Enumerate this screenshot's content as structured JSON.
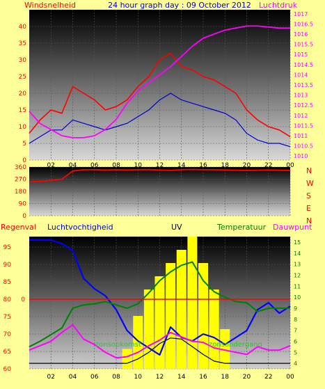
{
  "header": {
    "wind_label": "Windsnelheid",
    "title": "24 hour graph day : 09 October 2012",
    "pressure_label": "Luchtdruk"
  },
  "lower_header": {
    "rain_label": "Regenval",
    "humidity_label": "Luchtvochtigheid",
    "uv_label": "UV",
    "temp_label": "Temperatuur",
    "dew_label": "Dauwpunt"
  },
  "direction_letters": [
    "N",
    "W",
    "S",
    "E",
    "N"
  ],
  "annotations": {
    "sunrise": "zonsopkomst",
    "sunset": "zonsondergang"
  },
  "colors": {
    "page_bg": "#ffff99",
    "wind": "#ff0000",
    "gust_avg": "#0000cc",
    "pressure": "#ff00ff",
    "direction": "#ff0000",
    "humidity": "#0000ff",
    "temperature": "#008000",
    "dewpoint": "#ff00ff",
    "uv": "#ffff00",
    "solar": "#000000",
    "rain": "#ff0000",
    "labels_left": "#ff0000",
    "labels_right_temp": "#008000",
    "title": "#0000cc"
  },
  "chart_data": [
    {
      "type": "line",
      "title": "24 hour graph day : 09 October 2012",
      "x_ticks": [
        "02",
        "04",
        "06",
        "08",
        "10",
        "12",
        "14",
        "16",
        "18",
        "20",
        "22",
        "00"
      ],
      "x": [
        0,
        1,
        2,
        3,
        4,
        5,
        6,
        7,
        8,
        9,
        10,
        11,
        12,
        13,
        14,
        15,
        16,
        17,
        18,
        19,
        20,
        21,
        22,
        23,
        24
      ],
      "ylabel_left": "Windsnelheid",
      "ylim_left": [
        0,
        45
      ],
      "yticks_left": [
        0,
        5,
        10,
        15,
        20,
        25,
        30,
        35,
        40
      ],
      "ylabel_right": "Luchtdruk",
      "ylim_right": [
        1009.8,
        1017.2
      ],
      "yticks_right": [
        1010,
        1010.5,
        1011,
        1011.5,
        1012,
        1012.5,
        1013,
        1013.5,
        1014,
        1014.5,
        1015,
        1015.5,
        1016,
        1016.5,
        1017
      ],
      "series": [
        {
          "name": "Windsnelheid",
          "axis": "left",
          "values": [
            8,
            12,
            15,
            14,
            22,
            20,
            18,
            15,
            16,
            18,
            22,
            25,
            30,
            32,
            28,
            27,
            25,
            24,
            22,
            20,
            15,
            12,
            10,
            9,
            7
          ]
        },
        {
          "name": "",
          "axis": "left",
          "values": [
            5,
            7,
            9,
            9,
            12,
            11,
            10,
            9,
            10,
            11,
            13,
            15,
            18,
            20,
            18,
            17,
            16,
            15,
            14,
            12,
            8,
            6,
            5,
            5,
            4
          ]
        },
        {
          "name": "Luchtdruk",
          "axis": "right",
          "values": [
            1012.2,
            1011.6,
            1011.3,
            1011.0,
            1010.9,
            1010.9,
            1011.0,
            1011.3,
            1011.8,
            1012.6,
            1013.2,
            1013.6,
            1014.0,
            1014.4,
            1014.9,
            1015.4,
            1015.8,
            1016.0,
            1016.2,
            1016.3,
            1016.4,
            1016.4,
            1016.35,
            1016.3,
            1016.3
          ]
        }
      ]
    },
    {
      "type": "line",
      "x_ticks": [
        "02",
        "04",
        "06",
        "08",
        "10",
        "12",
        "14",
        "16",
        "18",
        "20",
        "22",
        "00"
      ],
      "x": [
        0,
        1,
        2,
        3,
        4,
        5,
        6,
        7,
        8,
        9,
        10,
        11,
        12,
        13,
        14,
        15,
        16,
        17,
        18,
        19,
        20,
        21,
        22,
        23,
        24
      ],
      "ylim": [
        0,
        360
      ],
      "yticks": [
        0,
        90,
        180,
        270,
        360
      ],
      "series": [
        {
          "name": "",
          "values": [
            250,
            255,
            262,
            270,
            330,
            340,
            340,
            338,
            340,
            338,
            340,
            341,
            338,
            335,
            340,
            342,
            340,
            340,
            338,
            336,
            335,
            336,
            338,
            336,
            335
          ]
        }
      ]
    },
    {
      "type": "line",
      "x_ticks": [
        "02",
        "04",
        "06",
        "08",
        "10",
        "12",
        "14",
        "16",
        "18",
        "20",
        "22",
        "00"
      ],
      "x": [
        0,
        1,
        2,
        3,
        4,
        5,
        6,
        7,
        8,
        9,
        10,
        11,
        12,
        13,
        14,
        15,
        16,
        17,
        18,
        19,
        20,
        21,
        22,
        23,
        24
      ],
      "ylabel_left": "Luchtvochtigheid",
      "ylim_left": [
        60,
        98
      ],
      "yticks_left": [
        60,
        65,
        70,
        75,
        80,
        85,
        90,
        95
      ],
      "ylabel_right": "Temperatuur",
      "ylim_right": [
        3.5,
        15.5
      ],
      "yticks_right": [
        4,
        5,
        6,
        7,
        8,
        9,
        10,
        11,
        12,
        13,
        14,
        15
      ],
      "rain_axis_label": "0",
      "series": [
        {
          "name": "Luchtvochtigheid",
          "axis": "left",
          "values": [
            97,
            97,
            97,
            96,
            94,
            86,
            83,
            81,
            77,
            71,
            68,
            66,
            64,
            72,
            69,
            68,
            70,
            69,
            67,
            69,
            71,
            77,
            79,
            76,
            78
          ]
        },
        {
          "name": "Temperatuur",
          "axis": "right",
          "values": [
            5.5,
            6.0,
            6.6,
            7.2,
            9.0,
            9.3,
            9.4,
            9.6,
            9.3,
            9.0,
            9.4,
            10.4,
            11.5,
            12.3,
            12.9,
            13.2,
            11.5,
            10.5,
            10.0,
            9.6,
            9.5,
            8.7,
            9.0,
            9.0,
            9.0
          ]
        },
        {
          "name": "Dauwpunt",
          "axis": "right",
          "values": [
            5.2,
            5.6,
            6.0,
            6.8,
            7.5,
            6.2,
            5.7,
            5.0,
            4.5,
            4.6,
            5.0,
            5.6,
            6.1,
            6.8,
            6.4,
            6.0,
            5.9,
            5.4,
            5.2,
            5.0,
            4.8,
            5.5,
            5.2,
            5.2,
            5.6
          ]
        },
        {
          "name": "UV",
          "axis": "uv",
          "values": [
            0,
            0,
            0,
            0,
            0,
            0,
            0,
            0,
            0,
            1.5,
            4,
            6,
            7,
            8,
            9,
            10,
            8,
            6,
            3,
            0,
            0,
            0,
            0,
            0,
            0
          ]
        },
        {
          "name": "",
          "axis": "right",
          "values": [
            4,
            4,
            4,
            4,
            4,
            4,
            4,
            4,
            4,
            4,
            4.4,
            5,
            5.8,
            6.3,
            6.2,
            5.5,
            4.8,
            4.2,
            4,
            4,
            4,
            4,
            4,
            4,
            4
          ]
        },
        {
          "name": "Regenval",
          "axis": "rain",
          "values": [
            0,
            0,
            0,
            0,
            0,
            0,
            0,
            0,
            0,
            0,
            0,
            0,
            0,
            0,
            0,
            0,
            0,
            0,
            0,
            0,
            0,
            0,
            0,
            0,
            0
          ]
        }
      ]
    }
  ]
}
